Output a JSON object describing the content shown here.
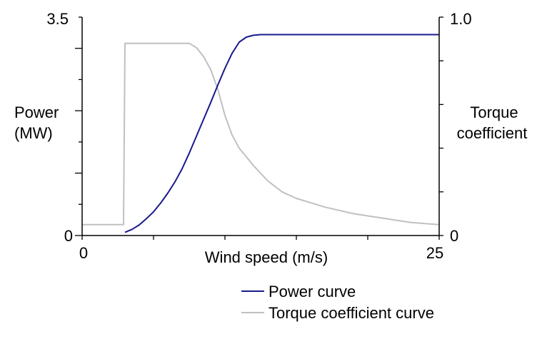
{
  "chart_data": {
    "type": "line",
    "xlabel": "Wind speed (m/s)",
    "xlim": [
      0,
      25
    ],
    "x_ticks": [
      "0",
      "25"
    ],
    "y_left": {
      "label_lines": [
        "Power",
        "(MW)"
      ],
      "lim": [
        0,
        3.5
      ],
      "ticks": [
        "0",
        "3.5"
      ]
    },
    "y_right": {
      "label_lines": [
        "Torque",
        "coefficient"
      ],
      "lim": [
        0,
        1.0
      ],
      "ticks": [
        "0",
        "1.0"
      ]
    },
    "grid": false,
    "legend_position": "bottom-right",
    "series": [
      {
        "name": "Power curve",
        "axis": "left",
        "color": "#1a1a8c",
        "x": [
          3,
          3.5,
          4,
          4.5,
          5,
          5.5,
          6,
          6.5,
          7,
          7.5,
          8,
          8.5,
          9,
          9.5,
          10,
          10.5,
          11,
          11.5,
          12,
          12.5,
          13,
          14,
          15,
          20,
          25
        ],
        "y": [
          0.05,
          0.1,
          0.17,
          0.27,
          0.38,
          0.52,
          0.68,
          0.86,
          1.07,
          1.32,
          1.59,
          1.86,
          2.13,
          2.41,
          2.68,
          2.92,
          3.1,
          3.18,
          3.21,
          3.22,
          3.22,
          3.22,
          3.22,
          3.22,
          3.22
        ]
      },
      {
        "name": "Torque coefficient curve",
        "axis": "right",
        "color": "#c0c0c0",
        "x": [
          0,
          2.9,
          3.0,
          3.1,
          5,
          7,
          7.5,
          8,
          8.5,
          9,
          9.5,
          10,
          10.5,
          11,
          11.5,
          12,
          13,
          14,
          15,
          16,
          17,
          18,
          19,
          20,
          21,
          22,
          23,
          24,
          25
        ],
        "y": [
          0.05,
          0.05,
          0.88,
          0.88,
          0.88,
          0.88,
          0.88,
          0.86,
          0.82,
          0.76,
          0.67,
          0.55,
          0.46,
          0.4,
          0.36,
          0.32,
          0.25,
          0.2,
          0.17,
          0.15,
          0.13,
          0.115,
          0.1,
          0.09,
          0.08,
          0.07,
          0.06,
          0.055,
          0.05
        ]
      }
    ]
  }
}
